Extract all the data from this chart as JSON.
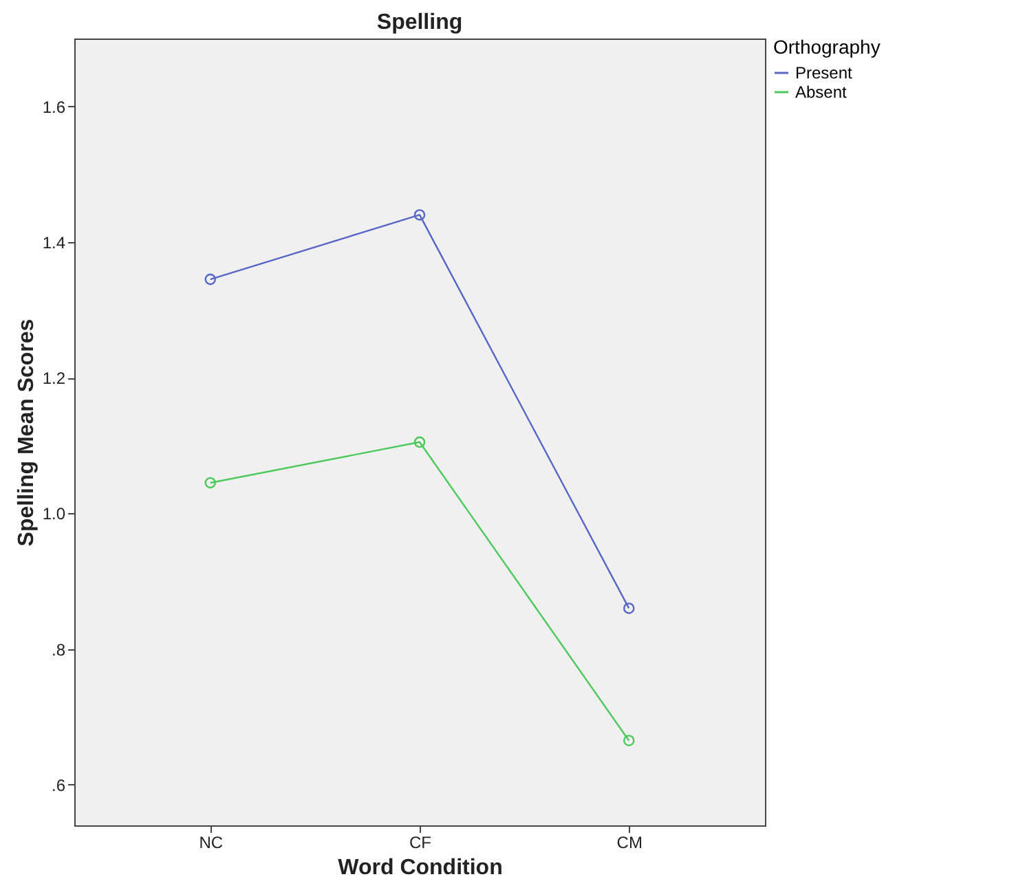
{
  "chart_data": {
    "type": "line",
    "title": "Spelling",
    "xlabel": "Word Condition",
    "ylabel": "Spelling Mean Scores",
    "legend_title": "Orthography",
    "categories": [
      "NC",
      "CF",
      "CM"
    ],
    "series": [
      {
        "name": "Present",
        "color": "#5566c8",
        "values": [
          1.345,
          1.44,
          0.86
        ]
      },
      {
        "name": "Absent",
        "color": "#4cc95a",
        "values": [
          1.045,
          1.105,
          0.665
        ]
      }
    ],
    "ylim": [
      0.54,
      1.7
    ],
    "yticks": [
      {
        "value": 0.6,
        "label": ".6"
      },
      {
        "value": 0.8,
        "label": ".8"
      },
      {
        "value": 1.0,
        "label": "1.0"
      },
      {
        "value": 1.2,
        "label": "1.2"
      },
      {
        "value": 1.4,
        "label": "1.4"
      },
      {
        "value": 1.6,
        "label": "1.6"
      }
    ],
    "grid": false,
    "legend": "top right",
    "marker": "circle",
    "line_style": "solid"
  }
}
